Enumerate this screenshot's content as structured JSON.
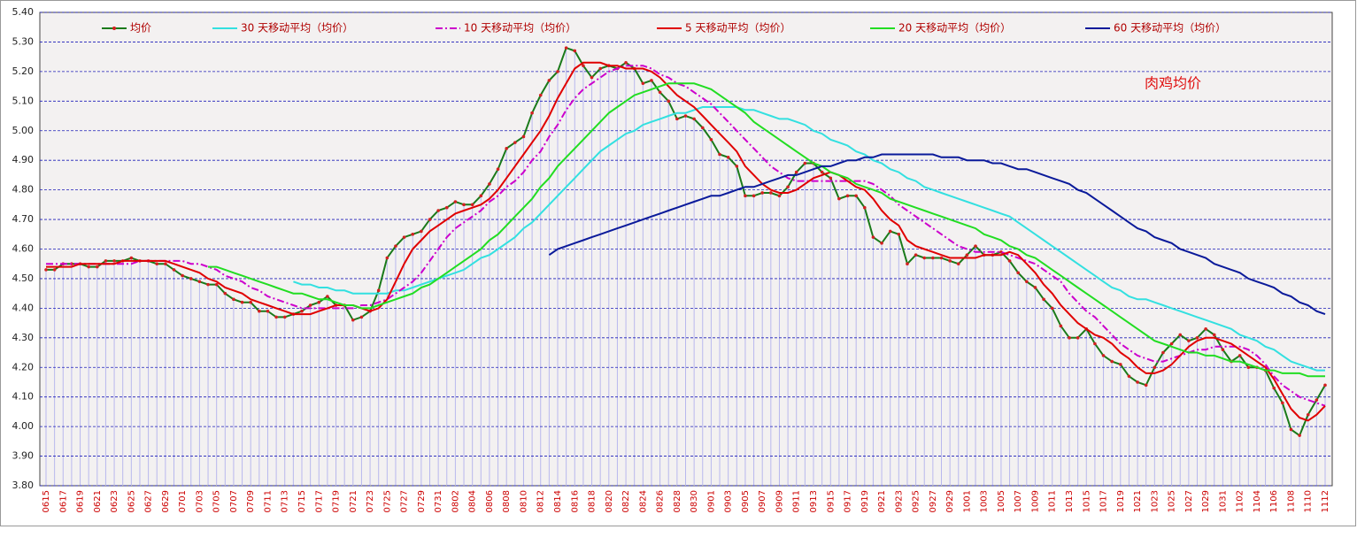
{
  "chart_data": {
    "type": "line",
    "annotation": "肉鸡均价",
    "categories": [
      "0615",
      null,
      "0617",
      null,
      "0619",
      null,
      "0621",
      null,
      "0623",
      null,
      "0625",
      null,
      "0627",
      null,
      "0629",
      null,
      "0701",
      null,
      "0703",
      null,
      "0705",
      null,
      "0707",
      null,
      "0709",
      null,
      "0711",
      null,
      "0713",
      null,
      "0715",
      null,
      "0717",
      null,
      "0719",
      null,
      "0721",
      null,
      "0723",
      null,
      "0725",
      null,
      "0727",
      null,
      "0729",
      null,
      "0731",
      null,
      "0802",
      null,
      "0804",
      null,
      "0806",
      null,
      "0808",
      null,
      "0810",
      null,
      "0812",
      null,
      "0814",
      null,
      "0816",
      null,
      "0818",
      null,
      "0820",
      null,
      "0822",
      null,
      "0824",
      null,
      "0826",
      null,
      "0828",
      null,
      "0830",
      null,
      "0901",
      null,
      "0903",
      null,
      "0905",
      null,
      "0907",
      null,
      "0909",
      null,
      "0911",
      null,
      "0913",
      null,
      "0915",
      null,
      "0917",
      null,
      "0919",
      null,
      "0921",
      null,
      "0923",
      null,
      "0925",
      null,
      "0927",
      null,
      "0929",
      null,
      "1001",
      null,
      "1003",
      null,
      "1005",
      null,
      "1007",
      null,
      "1009",
      null,
      "1011",
      null,
      "1013",
      null,
      "1015",
      null,
      "1017",
      null,
      "1019",
      null,
      "1021",
      null,
      "1023",
      null,
      "1025",
      null,
      "1027",
      null,
      "1029",
      null,
      "1031",
      null,
      "1102",
      null,
      "1104",
      null,
      "1106",
      null,
      "1108",
      null,
      "1110",
      null,
      "1112"
    ],
    "series": [
      {
        "name": "均价",
        "color": "#1a7a1a",
        "marker_color": "#d42020",
        "drop_lines": "#b8b8ee",
        "values": [
          4.53,
          4.53,
          4.55,
          4.55,
          4.55,
          4.54,
          4.54,
          4.56,
          4.56,
          4.56,
          4.57,
          4.56,
          4.56,
          4.55,
          4.55,
          4.53,
          4.51,
          4.5,
          4.49,
          4.48,
          4.48,
          4.45,
          4.43,
          4.42,
          4.42,
          4.39,
          4.39,
          4.37,
          4.37,
          4.38,
          4.39,
          4.41,
          4.42,
          4.44,
          4.41,
          4.41,
          4.36,
          4.37,
          4.39,
          4.46,
          4.57,
          4.61,
          4.64,
          4.65,
          4.66,
          4.7,
          4.73,
          4.74,
          4.76,
          4.75,
          4.75,
          4.78,
          4.82,
          4.87,
          4.94,
          4.96,
          4.98,
          5.06,
          5.12,
          5.17,
          5.2,
          5.28,
          5.27,
          5.22,
          5.18,
          5.21,
          5.22,
          5.21,
          5.23,
          5.21,
          5.16,
          5.17,
          5.13,
          5.1,
          5.04,
          5.05,
          5.04,
          5.01,
          4.97,
          4.92,
          4.91,
          4.88,
          4.78,
          4.78,
          4.79,
          4.79,
          4.78,
          4.81,
          4.86,
          4.89,
          4.89,
          4.86,
          4.84,
          4.77,
          4.78,
          4.78,
          4.74,
          4.64,
          4.62,
          4.66,
          4.65,
          4.55,
          4.58,
          4.57,
          4.57,
          4.57,
          4.56,
          4.55,
          4.58,
          4.61,
          4.58,
          4.58,
          4.59,
          4.56,
          4.52,
          4.49,
          4.47,
          4.43,
          4.4,
          4.34,
          4.3,
          4.3,
          4.33,
          4.28,
          4.24,
          4.22,
          4.21,
          4.17,
          4.15,
          4.14,
          4.2,
          4.25,
          4.28,
          4.31,
          4.29,
          4.3,
          4.33,
          4.31,
          4.26,
          4.22,
          4.24,
          4.2,
          4.2,
          4.19,
          4.13,
          4.08,
          3.99,
          3.97,
          4.04,
          4.09,
          4.14
        ]
      },
      {
        "name": "30 天移动平均（均价）",
        "color": "#33e0e0",
        "values": [
          null,
          null,
          null,
          null,
          null,
          null,
          null,
          null,
          null,
          null,
          null,
          null,
          null,
          null,
          null,
          null,
          null,
          null,
          null,
          null,
          null,
          null,
          null,
          null,
          null,
          null,
          null,
          null,
          null,
          4.49,
          4.48,
          4.48,
          4.47,
          4.47,
          4.46,
          4.46,
          4.45,
          4.45,
          4.45,
          4.45,
          4.45,
          4.46,
          4.46,
          4.47,
          4.48,
          4.49,
          4.5,
          4.51,
          4.52,
          4.53,
          4.55,
          4.57,
          4.58,
          4.6,
          4.62,
          4.64,
          4.67,
          4.69,
          4.72,
          4.75,
          4.78,
          4.81,
          4.84,
          4.87,
          4.9,
          4.93,
          4.95,
          4.97,
          4.99,
          5.0,
          5.02,
          5.03,
          5.04,
          5.05,
          5.06,
          5.06,
          5.07,
          5.08,
          5.08,
          5.08,
          5.08,
          5.08,
          5.07,
          5.07,
          5.06,
          5.05,
          5.04,
          5.04,
          5.03,
          5.02,
          5.0,
          4.99,
          4.97,
          4.96,
          4.95,
          4.93,
          4.92,
          4.9,
          4.89,
          4.87,
          4.86,
          4.84,
          4.83,
          4.81,
          4.8,
          4.79,
          4.78,
          4.77,
          4.76,
          4.75,
          4.74,
          4.73,
          4.72,
          4.71,
          4.69,
          4.67,
          4.65,
          4.63,
          4.61,
          4.59,
          4.57,
          4.55,
          4.53,
          4.51,
          4.49,
          4.47,
          4.46,
          4.44,
          4.43,
          4.43,
          4.42,
          4.41,
          4.4,
          4.39,
          4.38,
          4.37,
          4.36,
          4.35,
          4.34,
          4.33,
          4.31,
          4.3,
          4.29,
          4.27,
          4.26,
          4.24,
          4.22,
          4.21,
          4.2,
          4.19,
          4.19
        ]
      },
      {
        "name": "10 天移动平均（均价）",
        "color": "#cc00cc",
        "dash": "dashdot",
        "values": [
          4.55,
          4.55,
          4.55,
          4.55,
          4.55,
          4.55,
          4.55,
          4.55,
          4.55,
          4.55,
          4.55,
          4.56,
          4.56,
          4.56,
          4.56,
          4.56,
          4.56,
          4.55,
          4.55,
          4.54,
          4.53,
          4.51,
          4.5,
          4.49,
          4.47,
          4.46,
          4.44,
          4.43,
          4.42,
          4.41,
          4.4,
          4.4,
          4.4,
          4.4,
          4.4,
          4.4,
          4.4,
          4.41,
          4.41,
          4.42,
          4.43,
          4.45,
          4.47,
          4.49,
          4.52,
          4.56,
          4.6,
          4.64,
          4.67,
          4.69,
          4.71,
          4.73,
          4.76,
          4.78,
          4.81,
          4.83,
          4.86,
          4.9,
          4.93,
          4.98,
          5.02,
          5.07,
          5.11,
          5.14,
          5.16,
          5.18,
          5.2,
          5.21,
          5.22,
          5.22,
          5.22,
          5.21,
          5.19,
          5.18,
          5.16,
          5.15,
          5.13,
          5.11,
          5.09,
          5.06,
          5.03,
          5.0,
          4.97,
          4.94,
          4.91,
          4.88,
          4.86,
          4.84,
          4.83,
          4.83,
          4.83,
          4.83,
          4.83,
          4.83,
          4.83,
          4.83,
          4.83,
          4.82,
          4.8,
          4.78,
          4.75,
          4.73,
          4.71,
          4.69,
          4.67,
          4.65,
          4.63,
          4.61,
          4.6,
          4.59,
          4.59,
          4.59,
          4.59,
          4.58,
          4.57,
          4.56,
          4.55,
          4.53,
          4.51,
          4.49,
          4.45,
          4.42,
          4.39,
          4.37,
          4.34,
          4.31,
          4.28,
          4.26,
          4.24,
          4.23,
          4.22,
          4.22,
          4.23,
          4.24,
          4.25,
          4.26,
          4.26,
          4.27,
          4.27,
          4.27,
          4.27,
          4.26,
          4.24,
          4.21,
          4.17,
          4.14,
          4.12,
          4.1,
          4.09,
          4.08,
          4.07
        ]
      },
      {
        "name": "5 天移动平均（均价）",
        "color": "#e00000",
        "values": [
          4.54,
          4.54,
          4.54,
          4.54,
          4.55,
          4.55,
          4.55,
          4.55,
          4.55,
          4.56,
          4.56,
          4.56,
          4.56,
          4.56,
          4.56,
          4.55,
          4.54,
          4.53,
          4.52,
          4.5,
          4.49,
          4.47,
          4.46,
          4.45,
          4.43,
          4.42,
          4.41,
          4.4,
          4.39,
          4.38,
          4.38,
          4.38,
          4.39,
          4.4,
          4.41,
          4.41,
          4.41,
          4.4,
          4.39,
          4.4,
          4.43,
          4.49,
          4.55,
          4.6,
          4.63,
          4.66,
          4.68,
          4.7,
          4.72,
          4.73,
          4.74,
          4.75,
          4.77,
          4.8,
          4.84,
          4.88,
          4.92,
          4.96,
          5.0,
          5.05,
          5.11,
          5.16,
          5.21,
          5.23,
          5.23,
          5.23,
          5.22,
          5.22,
          5.21,
          5.21,
          5.21,
          5.2,
          5.18,
          5.15,
          5.12,
          5.1,
          5.08,
          5.05,
          5.02,
          4.99,
          4.96,
          4.93,
          4.88,
          4.85,
          4.82,
          4.8,
          4.79,
          4.79,
          4.8,
          4.82,
          4.84,
          4.85,
          4.86,
          4.85,
          4.83,
          4.81,
          4.8,
          4.77,
          4.73,
          4.7,
          4.68,
          4.63,
          4.61,
          4.6,
          4.59,
          4.58,
          4.57,
          4.57,
          4.57,
          4.57,
          4.58,
          4.58,
          4.58,
          4.59,
          4.58,
          4.55,
          4.52,
          4.48,
          4.45,
          4.41,
          4.38,
          4.35,
          4.33,
          4.31,
          4.3,
          4.28,
          4.25,
          4.23,
          4.2,
          4.18,
          4.18,
          4.19,
          4.21,
          4.24,
          4.27,
          4.29,
          4.3,
          4.3,
          4.29,
          4.28,
          4.26,
          4.24,
          4.22,
          4.2,
          4.16,
          4.11,
          4.06,
          4.03,
          4.02,
          4.04,
          4.07
        ]
      },
      {
        "name": "20 天移动平均（均价）",
        "color": "#22dd22",
        "values": [
          null,
          null,
          null,
          null,
          null,
          null,
          null,
          null,
          null,
          null,
          null,
          null,
          null,
          null,
          null,
          null,
          null,
          null,
          null,
          4.54,
          4.54,
          4.53,
          4.52,
          4.51,
          4.5,
          4.49,
          4.48,
          4.47,
          4.46,
          4.45,
          4.45,
          4.44,
          4.43,
          4.43,
          4.42,
          4.41,
          4.41,
          4.4,
          4.4,
          4.41,
          4.42,
          4.43,
          4.44,
          4.45,
          4.47,
          4.48,
          4.5,
          4.52,
          4.54,
          4.56,
          4.58,
          4.6,
          4.63,
          4.65,
          4.68,
          4.71,
          4.74,
          4.77,
          4.81,
          4.84,
          4.88,
          4.91,
          4.94,
          4.97,
          5.0,
          5.03,
          5.06,
          5.08,
          5.1,
          5.12,
          5.13,
          5.14,
          5.15,
          5.16,
          5.16,
          5.16,
          5.16,
          5.15,
          5.14,
          5.12,
          5.1,
          5.08,
          5.06,
          5.03,
          5.01,
          4.99,
          4.97,
          4.95,
          4.93,
          4.91,
          4.89,
          4.88,
          4.86,
          4.85,
          4.84,
          4.82,
          4.81,
          4.8,
          4.79,
          4.77,
          4.76,
          4.75,
          4.74,
          4.73,
          4.72,
          4.71,
          4.7,
          4.69,
          4.68,
          4.67,
          4.65,
          4.64,
          4.63,
          4.61,
          4.6,
          4.58,
          4.57,
          4.55,
          4.53,
          4.51,
          4.49,
          4.47,
          4.45,
          4.43,
          4.41,
          4.39,
          4.37,
          4.35,
          4.33,
          4.31,
          4.29,
          4.28,
          4.27,
          4.26,
          4.25,
          4.25,
          4.24,
          4.24,
          4.23,
          4.22,
          4.22,
          4.21,
          4.2,
          4.19,
          4.19,
          4.18,
          4.18,
          4.18,
          4.17,
          4.17,
          4.17
        ]
      },
      {
        "name": "60 天移动平均（均价）",
        "color": "#0a1a9a",
        "values": [
          null,
          null,
          null,
          null,
          null,
          null,
          null,
          null,
          null,
          null,
          null,
          null,
          null,
          null,
          null,
          null,
          null,
          null,
          null,
          null,
          null,
          null,
          null,
          null,
          null,
          null,
          null,
          null,
          null,
          null,
          null,
          null,
          null,
          null,
          null,
          null,
          null,
          null,
          null,
          null,
          null,
          null,
          null,
          null,
          null,
          null,
          null,
          null,
          null,
          null,
          null,
          null,
          null,
          null,
          null,
          null,
          null,
          null,
          null,
          4.58,
          4.6,
          4.61,
          4.62,
          4.63,
          4.64,
          4.65,
          4.66,
          4.67,
          4.68,
          4.69,
          4.7,
          4.71,
          4.72,
          4.73,
          4.74,
          4.75,
          4.76,
          4.77,
          4.78,
          4.78,
          4.79,
          4.8,
          4.81,
          4.81,
          4.82,
          4.83,
          4.84,
          4.85,
          4.85,
          4.86,
          4.87,
          4.88,
          4.88,
          4.89,
          4.9,
          4.9,
          4.91,
          4.91,
          4.92,
          4.92,
          4.92,
          4.92,
          4.92,
          4.92,
          4.92,
          4.91,
          4.91,
          4.91,
          4.9,
          4.9,
          4.9,
          4.89,
          4.89,
          4.88,
          4.87,
          4.87,
          4.86,
          4.85,
          4.84,
          4.83,
          4.82,
          4.8,
          4.79,
          4.77,
          4.75,
          4.73,
          4.71,
          4.69,
          4.67,
          4.66,
          4.64,
          4.63,
          4.62,
          4.6,
          4.59,
          4.58,
          4.57,
          4.55,
          4.54,
          4.53,
          4.52,
          4.5,
          4.49,
          4.48,
          4.47,
          4.45,
          4.44,
          4.42,
          4.41,
          4.39,
          4.38
        ]
      }
    ],
    "ylim": [
      3.8,
      5.4
    ],
    "yticks": [
      {
        "value": 3.8,
        "label": "3.80"
      },
      {
        "value": 3.9,
        "label": "3.90"
      },
      {
        "value": 4.0,
        "label": "4.00"
      },
      {
        "value": 4.1,
        "label": "4.10"
      },
      {
        "value": 4.2,
        "label": "4.20"
      },
      {
        "value": 4.3,
        "label": "4.30"
      },
      {
        "value": 4.4,
        "label": "4.40"
      },
      {
        "value": 4.5,
        "label": "4.50"
      },
      {
        "value": 4.6,
        "label": "4.60"
      },
      {
        "value": 4.7,
        "label": "4.70"
      },
      {
        "value": 4.8,
        "label": "4.80"
      },
      {
        "value": 4.9,
        "label": "4.90"
      },
      {
        "value": 5.0,
        "label": "5.00"
      },
      {
        "value": 5.1,
        "label": "5.10"
      },
      {
        "value": 5.2,
        "label": "5.20"
      },
      {
        "value": 5.3,
        "label": "5.30"
      },
      {
        "value": 5.4,
        "label": "5.40"
      }
    ],
    "grid": true,
    "grid_color": "#1c1cb8",
    "legend": "top"
  }
}
